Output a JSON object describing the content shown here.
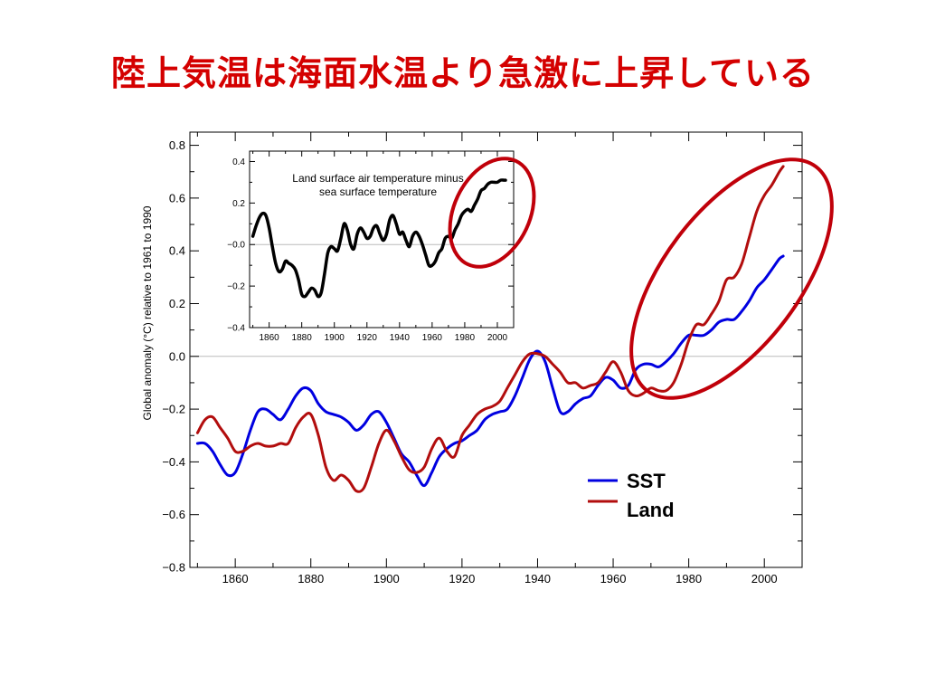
{
  "slide": {
    "title": "陸上気温は海面水温より急激に上昇している"
  },
  "colors": {
    "title": "#d40000",
    "sst": "#0000e0",
    "land": "#b20d0d",
    "diff": "#000000",
    "highlight_ring": "#c0000a",
    "zero_line": "#bbbbbb"
  },
  "chart_data": [
    {
      "type": "line",
      "xlabel": "",
      "ylabel": "Global anomaly (°C) relative to 1961 to 1990",
      "xlim": [
        1848,
        2010
      ],
      "ylim": [
        -0.8,
        0.85
      ],
      "x_ticks": [
        1860,
        1880,
        1900,
        1920,
        1940,
        1960,
        1980,
        2000
      ],
      "y_ticks": [
        0.8,
        0.6,
        0.4,
        0.2,
        0.0,
        -0.2,
        -0.4,
        -0.6,
        -0.8
      ],
      "y_tick_labels": [
        "0.8",
        "0.6",
        "0.4",
        "0.2",
        "0.0",
        "−0.2",
        "−0.4",
        "−0.6",
        "−0.8"
      ],
      "x_tick_labels": [
        "1860",
        "1880",
        "1900",
        "1920",
        "1940",
        "1960",
        "1980",
        "2000"
      ],
      "legend_position": "lower-right",
      "grid": false,
      "zero_line": true,
      "series": [
        {
          "name": "SST",
          "color_key": "sst",
          "x": [
            1850,
            1852,
            1854,
            1856,
            1858,
            1860,
            1862,
            1864,
            1866,
            1868,
            1870,
            1872,
            1874,
            1876,
            1878,
            1880,
            1882,
            1884,
            1886,
            1888,
            1890,
            1892,
            1894,
            1896,
            1898,
            1900,
            1902,
            1904,
            1906,
            1908,
            1910,
            1912,
            1914,
            1916,
            1918,
            1920,
            1922,
            1924,
            1926,
            1928,
            1930,
            1932,
            1934,
            1936,
            1938,
            1940,
            1942,
            1944,
            1946,
            1948,
            1950,
            1952,
            1954,
            1956,
            1958,
            1960,
            1962,
            1964,
            1966,
            1968,
            1970,
            1972,
            1974,
            1976,
            1978,
            1980,
            1982,
            1984,
            1986,
            1988,
            1990,
            1992,
            1994,
            1996,
            1998,
            2000,
            2002,
            2004,
            2005
          ],
          "y": [
            -0.33,
            -0.33,
            -0.36,
            -0.41,
            -0.45,
            -0.44,
            -0.37,
            -0.28,
            -0.21,
            -0.2,
            -0.22,
            -0.24,
            -0.2,
            -0.15,
            -0.12,
            -0.13,
            -0.18,
            -0.21,
            -0.22,
            -0.23,
            -0.25,
            -0.28,
            -0.26,
            -0.22,
            -0.21,
            -0.25,
            -0.31,
            -0.37,
            -0.4,
            -0.45,
            -0.49,
            -0.44,
            -0.38,
            -0.35,
            -0.33,
            -0.32,
            -0.3,
            -0.28,
            -0.24,
            -0.22,
            -0.21,
            -0.2,
            -0.15,
            -0.08,
            -0.01,
            0.02,
            -0.02,
            -0.12,
            -0.21,
            -0.21,
            -0.18,
            -0.16,
            -0.15,
            -0.11,
            -0.08,
            -0.09,
            -0.12,
            -0.11,
            -0.05,
            -0.03,
            -0.03,
            -0.04,
            -0.02,
            0.01,
            0.05,
            0.08,
            0.08,
            0.08,
            0.1,
            0.13,
            0.14,
            0.14,
            0.17,
            0.21,
            0.26,
            0.29,
            0.33,
            0.37,
            0.38
          ]
        },
        {
          "name": "Land",
          "color_key": "land",
          "x": [
            1850,
            1852,
            1854,
            1856,
            1858,
            1860,
            1862,
            1864,
            1866,
            1868,
            1870,
            1872,
            1874,
            1876,
            1878,
            1880,
            1882,
            1884,
            1886,
            1888,
            1890,
            1892,
            1894,
            1896,
            1898,
            1900,
            1902,
            1904,
            1906,
            1908,
            1910,
            1912,
            1914,
            1916,
            1918,
            1920,
            1922,
            1924,
            1926,
            1928,
            1930,
            1932,
            1934,
            1936,
            1938,
            1940,
            1942,
            1944,
            1946,
            1948,
            1950,
            1952,
            1954,
            1956,
            1958,
            1960,
            1962,
            1964,
            1966,
            1968,
            1970,
            1972,
            1974,
            1976,
            1978,
            1980,
            1982,
            1984,
            1986,
            1988,
            1990,
            1992,
            1994,
            1996,
            1998,
            2000,
            2002,
            2004,
            2005
          ],
          "y": [
            -0.29,
            -0.24,
            -0.23,
            -0.27,
            -0.31,
            -0.36,
            -0.36,
            -0.34,
            -0.33,
            -0.34,
            -0.34,
            -0.33,
            -0.33,
            -0.27,
            -0.23,
            -0.22,
            -0.3,
            -0.42,
            -0.47,
            -0.45,
            -0.47,
            -0.51,
            -0.5,
            -0.42,
            -0.33,
            -0.28,
            -0.32,
            -0.38,
            -0.43,
            -0.44,
            -0.42,
            -0.35,
            -0.31,
            -0.36,
            -0.38,
            -0.3,
            -0.26,
            -0.22,
            -0.2,
            -0.19,
            -0.17,
            -0.12,
            -0.07,
            -0.02,
            0.01,
            0.01,
            0.0,
            -0.03,
            -0.06,
            -0.1,
            -0.1,
            -0.12,
            -0.11,
            -0.1,
            -0.06,
            -0.02,
            -0.06,
            -0.13,
            -0.15,
            -0.14,
            -0.12,
            -0.13,
            -0.13,
            -0.1,
            -0.03,
            0.06,
            0.12,
            0.12,
            0.16,
            0.21,
            0.29,
            0.3,
            0.35,
            0.45,
            0.55,
            0.61,
            0.65,
            0.7,
            0.72
          ]
        }
      ],
      "inset": {
        "type": "line",
        "title": "Land surface air temperature minus sea surface temperature",
        "title_lines": [
          "Land surface air temperature minus",
          "sea surface temperature"
        ],
        "xlim": [
          1848,
          2010
        ],
        "ylim": [
          -0.4,
          0.45
        ],
        "x_ticks": [
          1860,
          1880,
          1900,
          1920,
          1940,
          1960,
          1980,
          2000
        ],
        "x_tick_labels": [
          "1860",
          "1880",
          "1900",
          "1920",
          "1940",
          "1960",
          "1980",
          "2000"
        ],
        "y_ticks": [
          0.4,
          0.2,
          0.0,
          -0.2,
          -0.4
        ],
        "y_tick_labels": [
          "0.4",
          "0.2",
          "−0.0",
          "−0.2",
          "−0.4"
        ],
        "zero_line": true,
        "series": [
          {
            "color_key": "diff",
            "x": [
              1850,
              1852,
              1854,
              1856,
              1858,
              1860,
              1862,
              1864,
              1866,
              1868,
              1870,
              1872,
              1874,
              1876,
              1878,
              1880,
              1882,
              1884,
              1886,
              1888,
              1890,
              1892,
              1894,
              1896,
              1898,
              1900,
              1902,
              1904,
              1906,
              1908,
              1910,
              1912,
              1914,
              1916,
              1918,
              1920,
              1922,
              1924,
              1926,
              1928,
              1930,
              1932,
              1934,
              1936,
              1938,
              1940,
              1942,
              1944,
              1946,
              1948,
              1950,
              1952,
              1954,
              1956,
              1958,
              1960,
              1962,
              1964,
              1966,
              1968,
              1970,
              1972,
              1974,
              1976,
              1978,
              1980,
              1982,
              1984,
              1986,
              1988,
              1990,
              1992,
              1994,
              1996,
              1998,
              2000,
              2002,
              2004,
              2005
            ],
            "y": [
              0.04,
              0.09,
              0.13,
              0.15,
              0.14,
              0.08,
              -0.01,
              -0.09,
              -0.13,
              -0.12,
              -0.08,
              -0.09,
              -0.1,
              -0.12,
              -0.17,
              -0.24,
              -0.25,
              -0.23,
              -0.21,
              -0.22,
              -0.25,
              -0.23,
              -0.14,
              -0.04,
              -0.01,
              -0.02,
              -0.03,
              0.03,
              0.1,
              0.07,
              0.0,
              -0.02,
              0.05,
              0.08,
              0.06,
              0.03,
              0.04,
              0.08,
              0.09,
              0.05,
              0.02,
              0.05,
              0.12,
              0.14,
              0.1,
              0.05,
              0.06,
              0.02,
              -0.01,
              0.04,
              0.06,
              0.04,
              0.0,
              -0.05,
              -0.1,
              -0.1,
              -0.08,
              -0.04,
              -0.02,
              0.03,
              0.04,
              0.03,
              0.07,
              0.1,
              0.14,
              0.16,
              0.17,
              0.16,
              0.19,
              0.22,
              0.26,
              0.27,
              0.29,
              0.3,
              0.3,
              0.3,
              0.31,
              0.31,
              0.31
            ]
          }
        ]
      }
    }
  ]
}
